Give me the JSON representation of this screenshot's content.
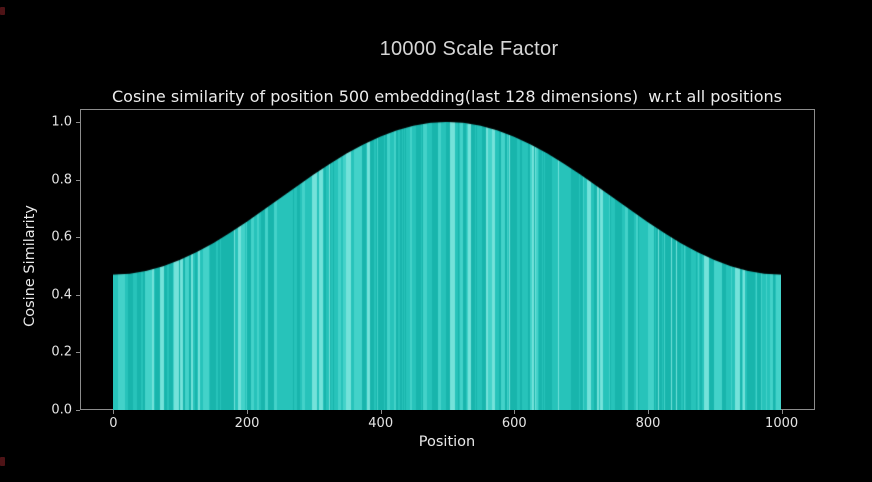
{
  "figure": {
    "title": "10000 Scale Factor",
    "background": "#000000",
    "text_color": "#ececec",
    "spine_color": "#8c8c8c",
    "edge_marks_color": "#4e1316"
  },
  "chart_data": {
    "type": "bar",
    "title": "Cosine similarity of position 500 embedding(last 128 dimensions)  w.r.t all positions",
    "xlabel": "Position",
    "ylabel": "Cosine Similarity",
    "xlim": [
      -50,
      1050
    ],
    "ylim": [
      0,
      1.045
    ],
    "x_tick_values": [
      0,
      200,
      400,
      600,
      800,
      1000
    ],
    "x_tick_labels": [
      "0",
      "200",
      "400",
      "600",
      "800",
      "1000"
    ],
    "y_tick_values": [
      0.0,
      0.2,
      0.4,
      0.6,
      0.8,
      1.0
    ],
    "y_tick_labels": [
      "0.0",
      "0.2",
      "0.4",
      "0.6",
      "0.8",
      "1.0"
    ],
    "grid": false,
    "legend": null,
    "bar_count": 1000,
    "bar_color_palette": [
      "#18b5ac",
      "#27c3ba",
      "#43d2c9",
      "#74e2da"
    ],
    "bar_color_weights": [
      0.38,
      0.3,
      0.2,
      0.12
    ],
    "x": [
      0,
      25,
      50,
      75,
      100,
      125,
      150,
      175,
      200,
      225,
      250,
      275,
      300,
      325,
      350,
      375,
      400,
      425,
      450,
      475,
      500,
      525,
      550,
      575,
      600,
      625,
      650,
      675,
      700,
      725,
      750,
      775,
      800,
      825,
      850,
      875,
      900,
      925,
      950,
      975,
      1000
    ],
    "values": [
      0.47,
      0.473,
      0.483,
      0.499,
      0.521,
      0.548,
      0.579,
      0.615,
      0.653,
      0.694,
      0.735,
      0.776,
      0.817,
      0.855,
      0.891,
      0.922,
      0.949,
      0.971,
      0.987,
      0.997,
      1.0,
      0.997,
      0.987,
      0.971,
      0.949,
      0.922,
      0.891,
      0.855,
      0.817,
      0.776,
      0.735,
      0.694,
      0.653,
      0.615,
      0.579,
      0.548,
      0.521,
      0.499,
      0.483,
      0.473,
      0.47
    ],
    "peak_position": 500,
    "peak_value": 1.0,
    "edge_value": 0.47
  }
}
